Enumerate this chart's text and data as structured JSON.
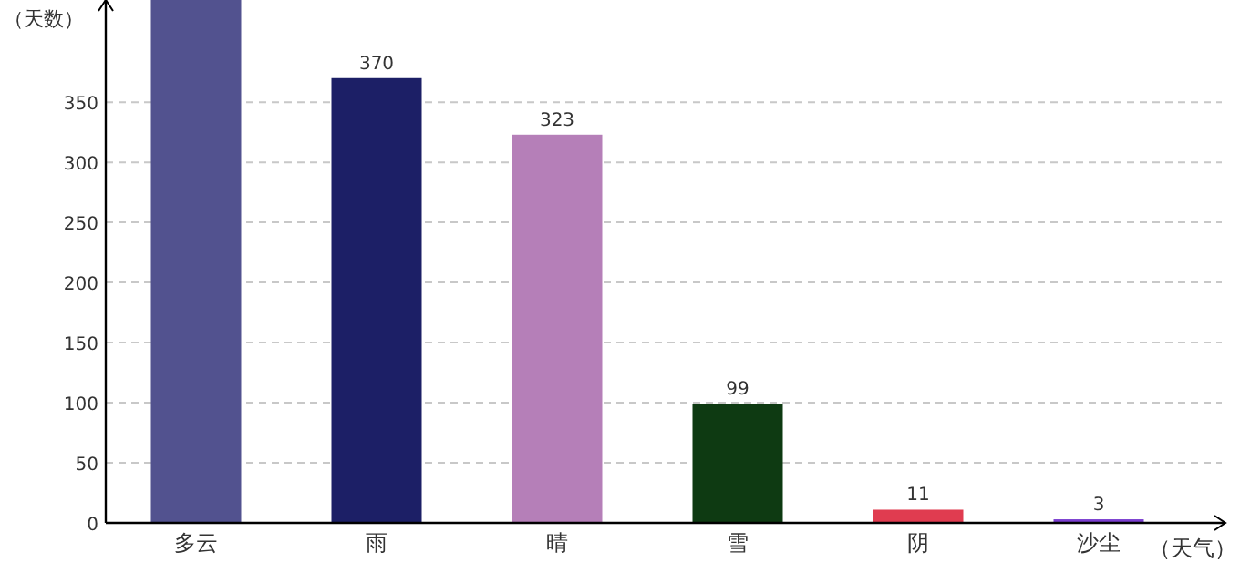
{
  "chart_data": {
    "type": "bar",
    "xlabel": "（天气）",
    "ylabel": "（天数）",
    "categories": [
      "多云",
      "雨",
      "晴",
      "雪",
      "阴",
      "沙尘"
    ],
    "values": [
      435,
      370,
      323,
      99,
      11,
      3
    ],
    "colors": [
      "#52528f",
      "#1c1f66",
      "#b57fb8",
      "#0e3a12",
      "#e03c50",
      "#7b3fd0"
    ],
    "value_labels": [
      null,
      "370",
      "323",
      "99",
      "11",
      "3"
    ],
    "ylim": [
      0,
      435
    ],
    "yticks": [
      0,
      50,
      100,
      150,
      200,
      250,
      300,
      350
    ],
    "grid": "y"
  }
}
